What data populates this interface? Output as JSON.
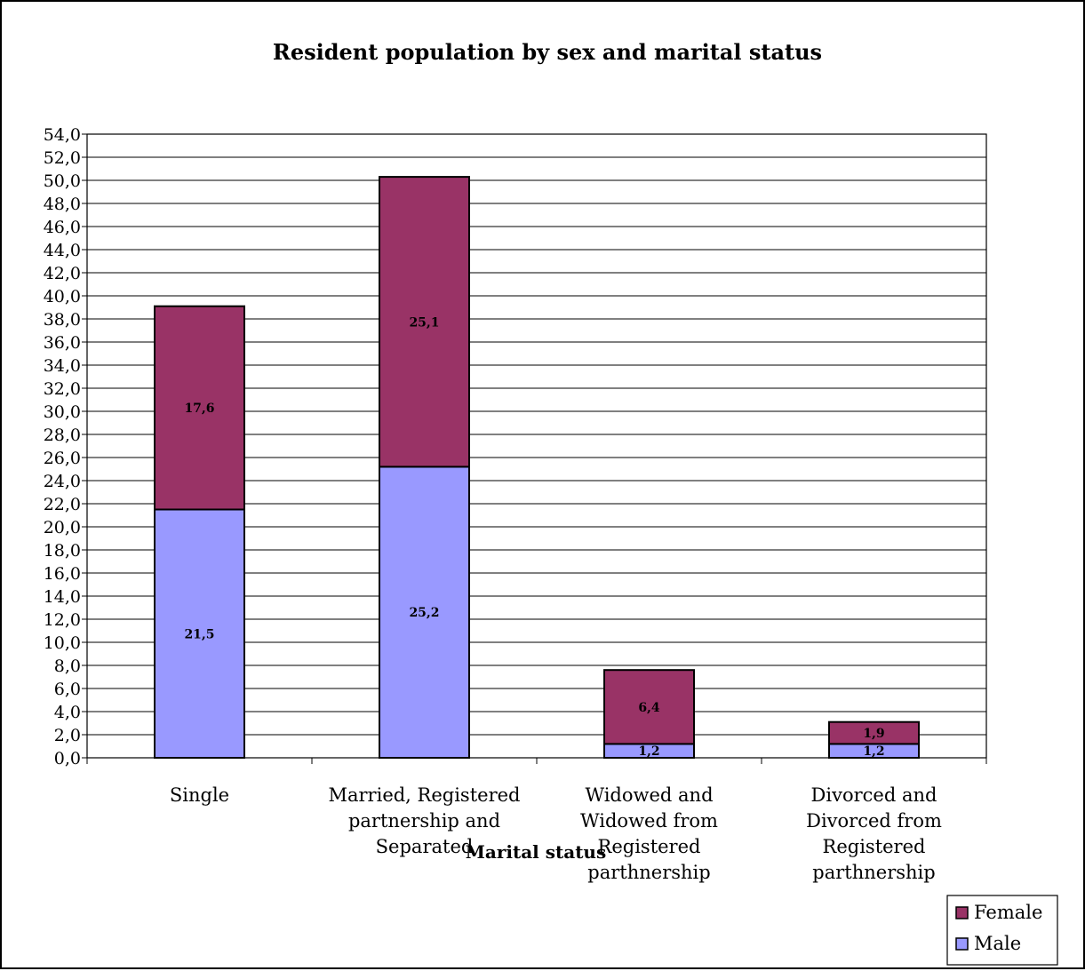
{
  "chart_data": {
    "type": "bar",
    "stacked": true,
    "title": "Resident population by sex and marital status",
    "xlabel": "Marital status",
    "ylabel": "",
    "ylim": [
      0,
      54
    ],
    "ytick_step": 2,
    "ytick_labels": [
      "0,0",
      "2,0",
      "4,0",
      "6,0",
      "8,0",
      "10,0",
      "12,0",
      "14,0",
      "16,0",
      "18,0",
      "20,0",
      "22,0",
      "24,0",
      "26,0",
      "28,0",
      "30,0",
      "32,0",
      "34,0",
      "36,0",
      "38,0",
      "40,0",
      "42,0",
      "44,0",
      "46,0",
      "48,0",
      "50,0",
      "52,0",
      "54,0"
    ],
    "grid": true,
    "legend_position": "bottom-right",
    "categories": [
      [
        "Single"
      ],
      [
        "Married, Registered",
        "partnership and",
        "Separated"
      ],
      [
        "Widowed and",
        "Widowed from",
        "Registered",
        "parthnership"
      ],
      [
        "Divorced and",
        "Divorced from",
        "Registered",
        "parthnership"
      ]
    ],
    "series": [
      {
        "name": "Male",
        "color": "#9999ff",
        "values": [
          21.5,
          25.2,
          1.2,
          1.2
        ],
        "labels": [
          "21,5",
          "25,2",
          "1,2",
          "1,2"
        ]
      },
      {
        "name": "Female",
        "color": "#993366",
        "values": [
          17.6,
          25.1,
          6.4,
          1.9
        ],
        "labels": [
          "17,6",
          "25,1",
          "6,4",
          "1,9"
        ]
      }
    ]
  }
}
